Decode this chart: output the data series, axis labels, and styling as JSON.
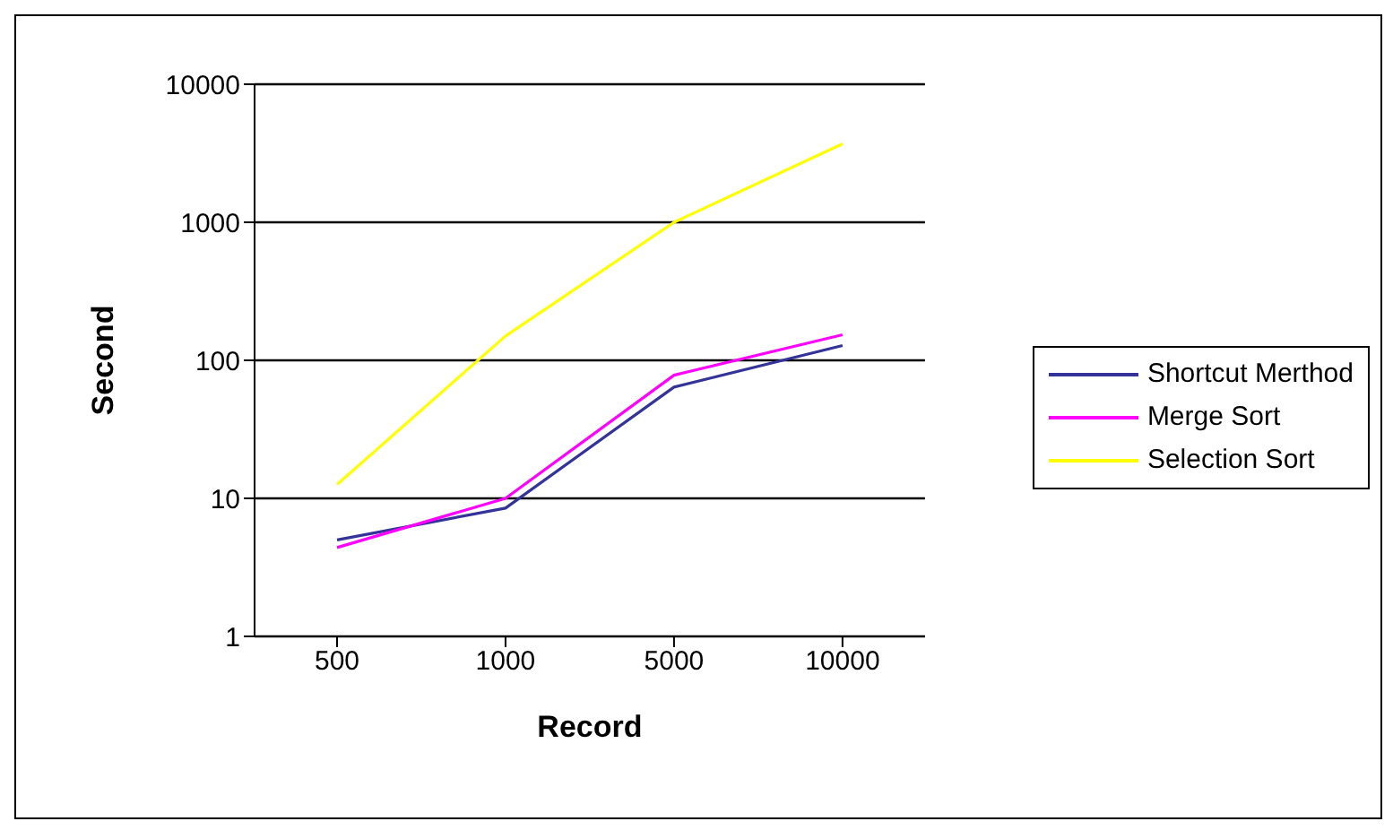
{
  "chart_data": {
    "type": "line",
    "xlabel": "Record",
    "ylabel": "Second",
    "categories": [
      "500",
      "1000",
      "5000",
      "10000"
    ],
    "series": [
      {
        "name": "Shortcut Merthod",
        "color": "#333399",
        "values": [
          5,
          8.5,
          64,
          128
        ]
      },
      {
        "name": "Merge Sort",
        "color": "#ff00ff",
        "values": [
          4.4,
          10,
          78,
          153
        ]
      },
      {
        "name": "Selection Sort",
        "color": "#ffff00",
        "values": [
          12.6,
          150,
          1000,
          3700
        ]
      }
    ],
    "log": "y",
    "ylim": [
      1,
      10000
    ],
    "yticks": [
      1,
      10,
      100,
      1000,
      10000
    ],
    "grid": "y",
    "legend": "right",
    "marker": "none",
    "line_style": "solid"
  }
}
